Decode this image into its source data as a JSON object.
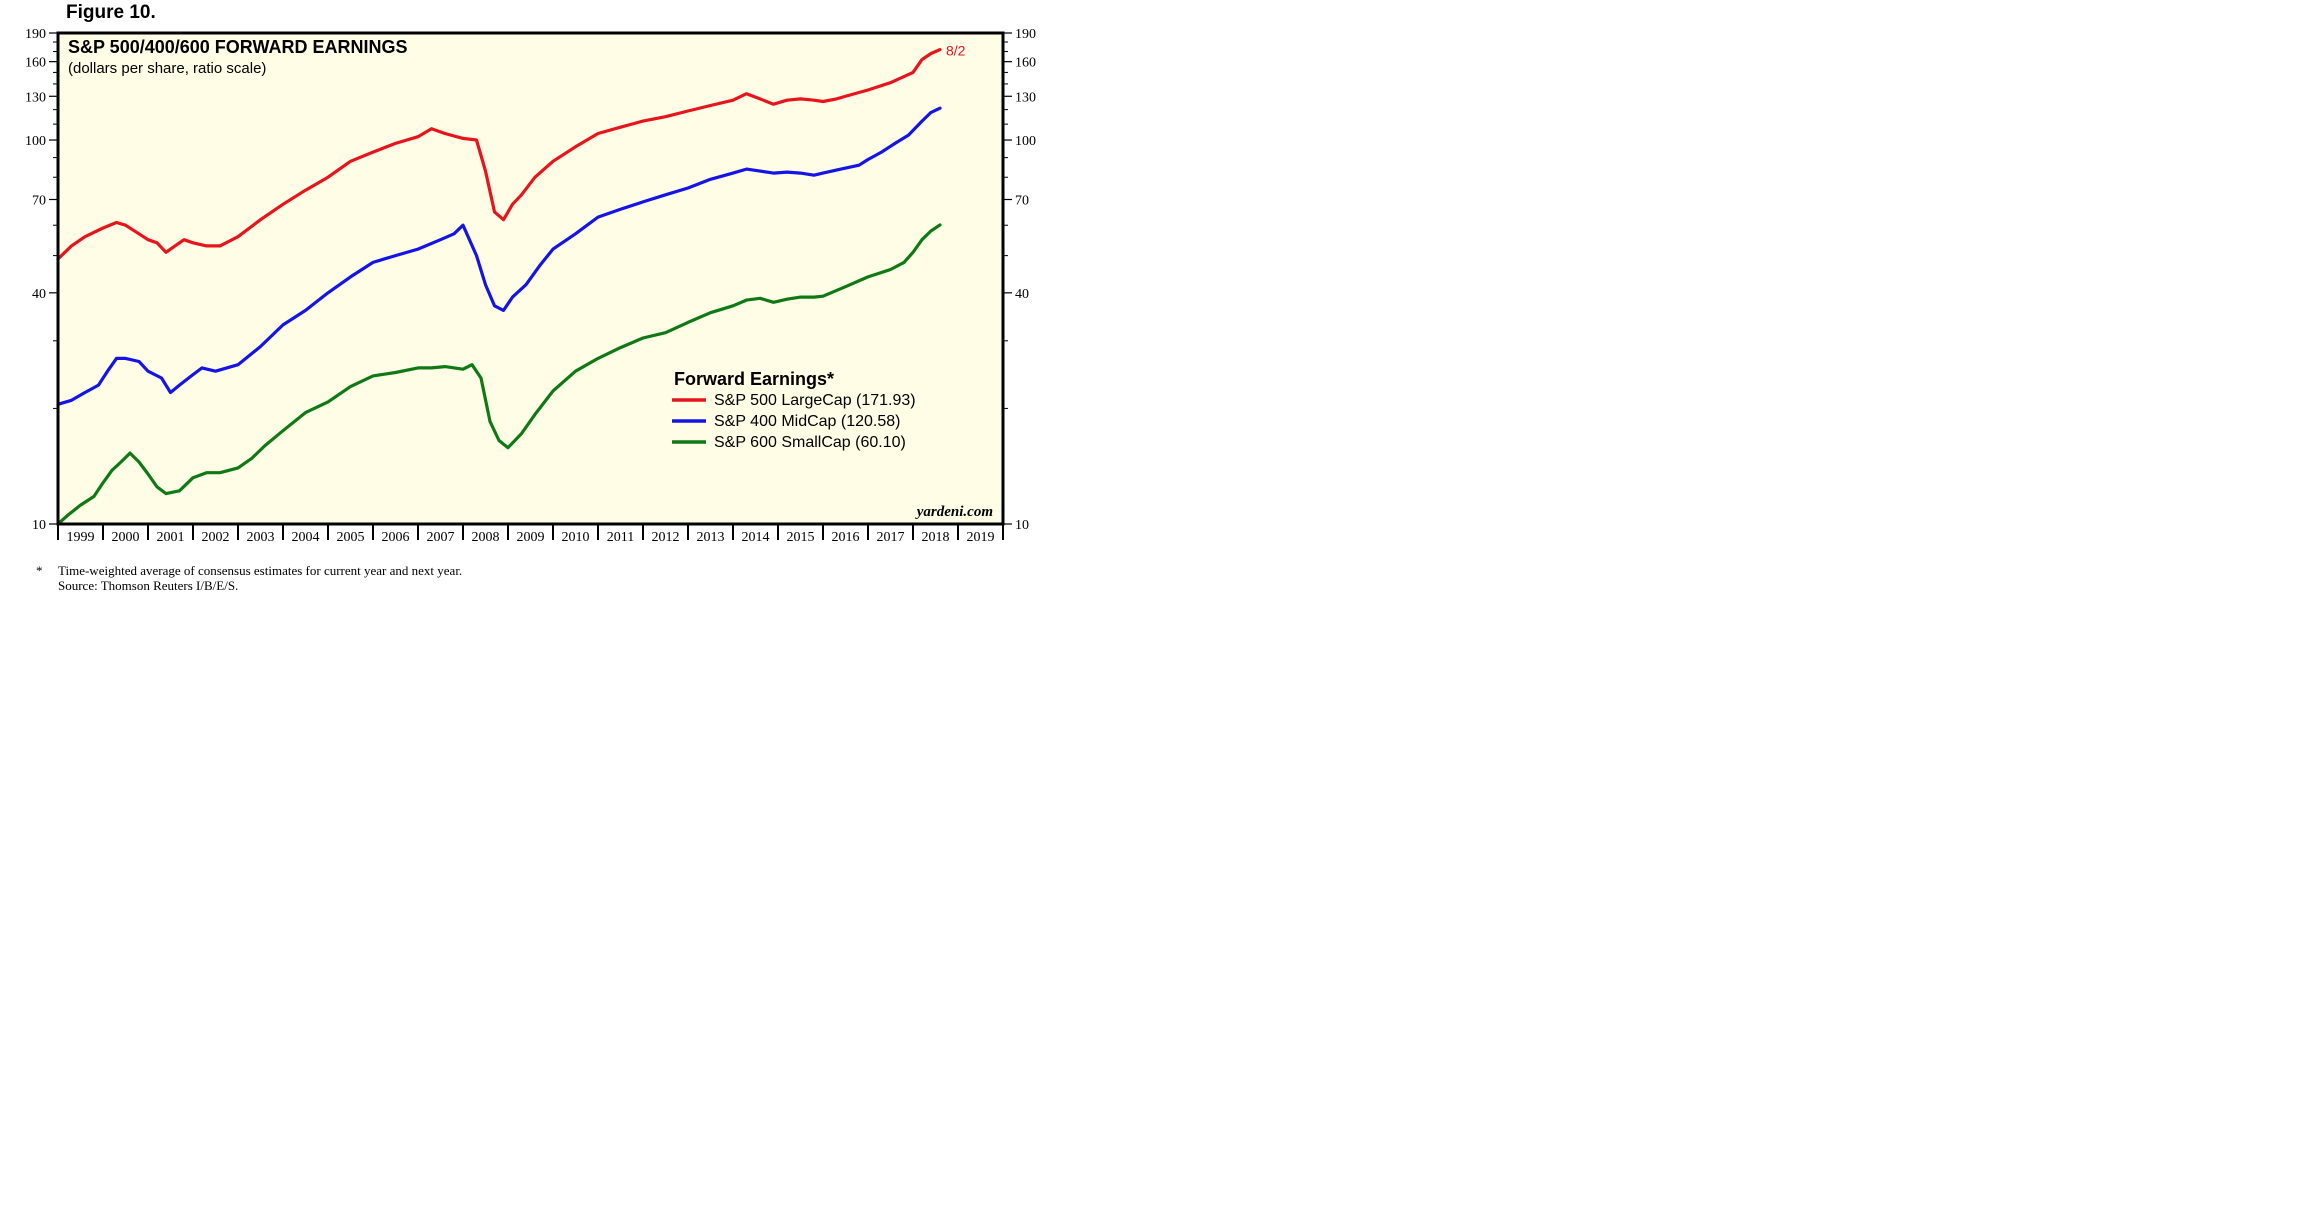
{
  "figure_label": "Figure 10.",
  "chart_data": {
    "type": "line",
    "title": "S&P 500/400/600 FORWARD EARNINGS",
    "subtitle": "(dollars per share, ratio scale)",
    "y_scale": "log",
    "ylim": [
      10,
      190
    ],
    "y_ticks": [
      10,
      40,
      70,
      100,
      130,
      160,
      190
    ],
    "xlim": [
      1999.0,
      2020.0
    ],
    "x_tick_labels": [
      "1999",
      "2000",
      "2001",
      "2002",
      "2003",
      "2004",
      "2005",
      "2006",
      "2007",
      "2008",
      "2009",
      "2010",
      "2011",
      "2012",
      "2013",
      "2014",
      "2015",
      "2016",
      "2017",
      "2018",
      "2019"
    ],
    "legend_title": "Forward Earnings*",
    "legend_position": "center-right",
    "end_label": "8/2",
    "credit": "yardeni.com",
    "background_color": "#fffde6",
    "series": [
      {
        "name": "S&P 500 LargeCap (171.93)",
        "color": "#e8141c",
        "x": [
          1999.0,
          1999.3,
          1999.6,
          2000.0,
          2000.3,
          2000.5,
          2000.8,
          2001.0,
          2001.2,
          2001.4,
          2001.6,
          2001.8,
          2002.0,
          2002.3,
          2002.6,
          2003.0,
          2003.5,
          2004.0,
          2004.5,
          2005.0,
          2005.5,
          2006.0,
          2006.5,
          2007.0,
          2007.3,
          2007.6,
          2008.0,
          2008.3,
          2008.5,
          2008.7,
          2008.9,
          2009.1,
          2009.3,
          2009.6,
          2010.0,
          2010.5,
          2011.0,
          2011.5,
          2012.0,
          2012.5,
          2013.0,
          2013.5,
          2014.0,
          2014.3,
          2014.6,
          2014.9,
          2015.2,
          2015.5,
          2015.8,
          2016.0,
          2016.3,
          2016.6,
          2017.0,
          2017.5,
          2018.0,
          2018.2,
          2018.4,
          2018.6
        ],
        "y": [
          49,
          53,
          56,
          59,
          61,
          60,
          57,
          55,
          54,
          51,
          53,
          55,
          54,
          53,
          53,
          56,
          62,
          68,
          74,
          80,
          88,
          93,
          98,
          102,
          107,
          104,
          101,
          100,
          83,
          65,
          62,
          68,
          72,
          80,
          88,
          96,
          104,
          108,
          112,
          115,
          119,
          123,
          127,
          132,
          128,
          124,
          127,
          128,
          127,
          126,
          128,
          131,
          135,
          141,
          150,
          162,
          168,
          172
        ]
      },
      {
        "name": "S&P 400 MidCap (120.58)",
        "color": "#1414e6",
        "x": [
          1999.0,
          1999.3,
          1999.6,
          1999.9,
          2000.1,
          2000.3,
          2000.5,
          2000.8,
          2001.0,
          2001.3,
          2001.5,
          2001.7,
          2002.0,
          2002.2,
          2002.5,
          2003.0,
          2003.5,
          2004.0,
          2004.5,
          2005.0,
          2005.5,
          2006.0,
          2006.5,
          2007.0,
          2007.5,
          2007.8,
          2008.0,
          2008.3,
          2008.5,
          2008.7,
          2008.9,
          2009.1,
          2009.4,
          2009.7,
          2010.0,
          2010.5,
          2011.0,
          2011.5,
          2012.0,
          2012.5,
          2013.0,
          2013.5,
          2014.0,
          2014.3,
          2014.6,
          2014.9,
          2015.2,
          2015.5,
          2015.8,
          2016.0,
          2016.4,
          2016.8,
          2017.0,
          2017.3,
          2017.6,
          2017.9,
          2018.2,
          2018.4,
          2018.6
        ],
        "y": [
          20.5,
          21,
          22,
          23,
          25,
          27,
          27,
          26.5,
          25,
          24,
          22,
          23,
          24.5,
          25.5,
          25,
          26,
          29,
          33,
          36,
          40,
          44,
          48,
          50,
          52,
          55,
          57,
          60,
          50,
          42,
          37,
          36,
          39,
          42,
          47,
          52,
          57,
          63,
          66,
          69,
          72,
          75,
          79,
          82,
          84,
          83,
          82,
          82.5,
          82,
          81,
          82,
          84,
          86,
          89,
          93,
          98,
          103,
          112,
          118,
          121
        ]
      },
      {
        "name": "S&P 600 SmallCap (60.10)",
        "color": "#0f7a14",
        "x": [
          1999.0,
          1999.2,
          1999.5,
          1999.8,
          2000.0,
          2000.2,
          2000.4,
          2000.6,
          2000.8,
          2001.0,
          2001.2,
          2001.4,
          2001.7,
          2002.0,
          2002.3,
          2002.6,
          2003.0,
          2003.3,
          2003.6,
          2004.0,
          2004.5,
          2005.0,
          2005.5,
          2006.0,
          2006.5,
          2007.0,
          2007.3,
          2007.6,
          2008.0,
          2008.2,
          2008.4,
          2008.6,
          2008.8,
          2009.0,
          2009.3,
          2009.6,
          2010.0,
          2010.5,
          2011.0,
          2011.5,
          2012.0,
          2012.5,
          2013.0,
          2013.5,
          2014.0,
          2014.3,
          2014.6,
          2014.9,
          2015.2,
          2015.5,
          2015.8,
          2016.0,
          2016.5,
          2017.0,
          2017.5,
          2017.8,
          2018.0,
          2018.2,
          2018.4,
          2018.6
        ],
        "y": [
          10.0,
          10.5,
          11.2,
          11.8,
          12.8,
          13.8,
          14.5,
          15.3,
          14.5,
          13.5,
          12.5,
          12.0,
          12.2,
          13.2,
          13.6,
          13.6,
          14.0,
          14.8,
          16.0,
          17.5,
          19.5,
          20.8,
          22.8,
          24.3,
          24.8,
          25.5,
          25.5,
          25.7,
          25.3,
          26.0,
          24.0,
          18.5,
          16.5,
          15.8,
          17.2,
          19.3,
          22.2,
          25.0,
          27.0,
          28.8,
          30.5,
          31.5,
          33.5,
          35.5,
          37.0,
          38.3,
          38.7,
          37.8,
          38.5,
          39.0,
          39.0,
          39.2,
          41.5,
          44.0,
          46.0,
          48.0,
          51.0,
          55.0,
          58.0,
          60.1
        ]
      }
    ]
  },
  "footnote": {
    "star": "*",
    "text": "Time-weighted average of consensus estimates for current year and next year.",
    "source": "Source: Thomson Reuters I/B/E/S."
  }
}
